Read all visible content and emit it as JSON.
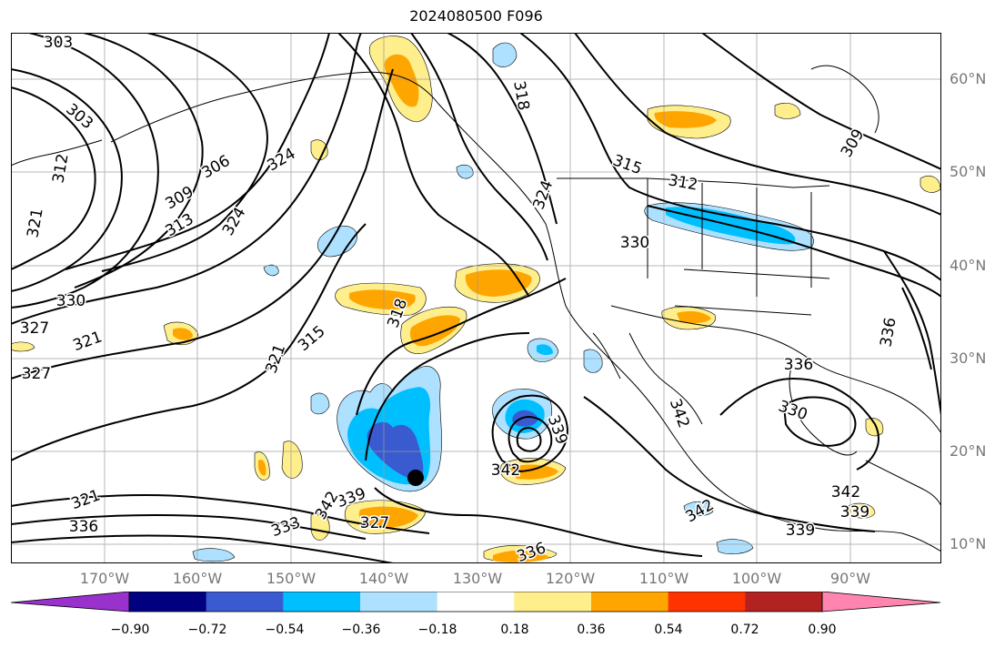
{
  "title": "2024080500 F096",
  "lat_labels": [
    "60°N",
    "50°N",
    "40°N",
    "30°N",
    "20°N",
    "10°N"
  ],
  "lon_labels": [
    "170°W",
    "160°W",
    "150°W",
    "140°W",
    "130°W",
    "120°W",
    "110°W",
    "100°W",
    "90°W"
  ],
  "colorbar": {
    "ticks": [
      "−0.90",
      "−0.72",
      "−0.54",
      "−0.36",
      "−0.18",
      "0.18",
      "0.36",
      "0.54",
      "0.72",
      "0.90"
    ],
    "colors": [
      "#9932CC",
      "#000080",
      "#3A5BD0",
      "#00BFFF",
      "#ADE1FF",
      "#FFFFFF",
      "#FFEE8C",
      "#FFA500",
      "#FF3300",
      "#B22222",
      "#FF85B0"
    ]
  },
  "contour_labels": [
    "303",
    "303",
    "312",
    "321",
    "324",
    "306",
    "309",
    "313",
    "324",
    "330",
    "321",
    "327",
    "327",
    "321",
    "315",
    "318",
    "321",
    "318",
    "324",
    "315",
    "312",
    "330",
    "309",
    "339",
    "342",
    "336",
    "342",
    "336",
    "330",
    "327",
    "342",
    "336",
    "339",
    "333",
    "339",
    "342",
    "336",
    "342",
    "339"
  ]
}
